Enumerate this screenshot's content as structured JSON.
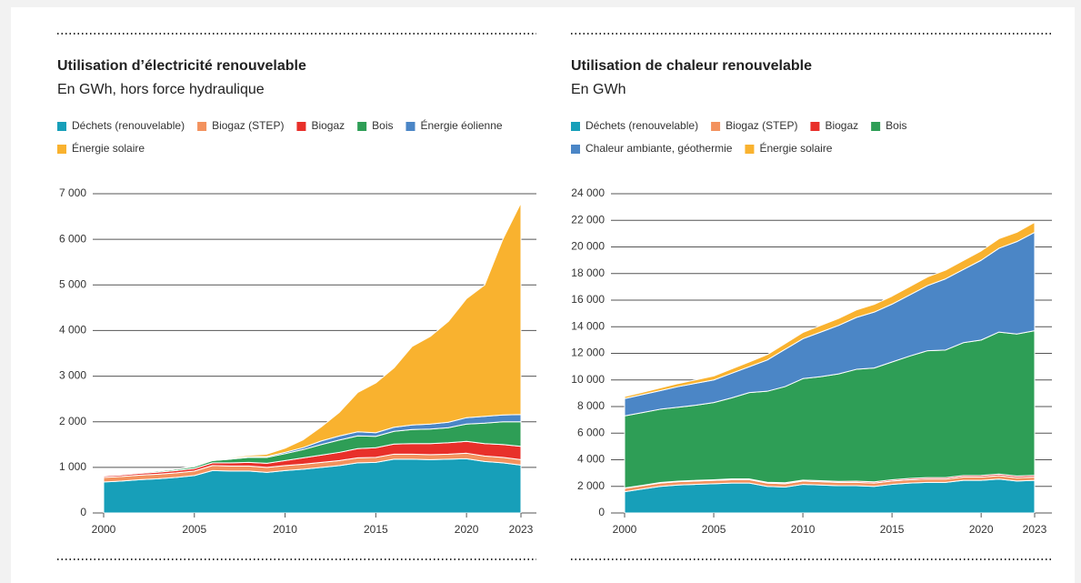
{
  "chart_data": [
    {
      "type": "area",
      "stacked": true,
      "title": "Utilisation d’électricité renouvelable",
      "subtitle": "En GWh, hors force hydraulique",
      "x": [
        2000,
        2001,
        2002,
        2003,
        2004,
        2005,
        2006,
        2007,
        2008,
        2009,
        2010,
        2011,
        2012,
        2013,
        2014,
        2015,
        2016,
        2017,
        2018,
        2019,
        2020,
        2021,
        2022,
        2023
      ],
      "xlim": [
        2000,
        2023
      ],
      "xticks": [
        2000,
        2005,
        2010,
        2015,
        2020,
        2023
      ],
      "ylim": [
        0,
        7000
      ],
      "yticks": [
        0,
        {
          "value": 1000,
          "label": "1 000"
        },
        {
          "value": 2000,
          "label": "2 000"
        },
        {
          "value": 3000,
          "label": "3 000"
        },
        {
          "value": 4000,
          "label": "4 000"
        },
        {
          "value": 5000,
          "label": "5 000"
        },
        {
          "value": 6000,
          "label": "6 000"
        },
        {
          "value": 7000,
          "label": "7 000"
        }
      ],
      "grid": true,
      "legend": "top",
      "series": [
        {
          "name": "Déchets (renouvelable)",
          "color": "#179fb9",
          "values": [
            680,
            700,
            730,
            750,
            780,
            820,
            930,
            920,
            920,
            890,
            930,
            960,
            1000,
            1040,
            1100,
            1110,
            1180,
            1180,
            1170,
            1180,
            1190,
            1130,
            1100,
            1050
          ]
        },
        {
          "name": "Biogaz (STEP)",
          "color": "#f3925e",
          "values": [
            100,
            100,
            100,
            100,
            100,
            100,
            110,
            110,
            110,
            110,
            110,
            110,
            110,
            110,
            110,
            110,
            110,
            110,
            110,
            110,
            120,
            120,
            120,
            120
          ]
        },
        {
          "name": "Biogaz",
          "color": "#e8302a",
          "values": [
            30,
            35,
            40,
            45,
            50,
            55,
            60,
            70,
            80,
            90,
            110,
            140,
            160,
            180,
            200,
            210,
            220,
            230,
            240,
            250,
            260,
            270,
            280,
            290
          ]
        },
        {
          "name": "Bois",
          "color": "#2e9e56",
          "values": [
            10,
            15,
            20,
            25,
            30,
            40,
            50,
            80,
            110,
            130,
            150,
            180,
            230,
            270,
            280,
            250,
            280,
            310,
            320,
            330,
            380,
            450,
            500,
            540
          ]
        },
        {
          "name": "Énergie éolienne",
          "color": "#4b86c6",
          "values": [
            0,
            0,
            0,
            1,
            2,
            5,
            8,
            12,
            15,
            20,
            30,
            45,
            80,
            90,
            90,
            80,
            90,
            100,
            110,
            120,
            140,
            150,
            150,
            160
          ]
        },
        {
          "name": "Énergie solaire",
          "color": "#f9b22f",
          "values": [
            0,
            1,
            1,
            2,
            3,
            5,
            10,
            20,
            30,
            50,
            90,
            170,
            310,
            520,
            860,
            1090,
            1300,
            1720,
            1920,
            2210,
            2610,
            2880,
            3850,
            4640
          ]
        }
      ]
    },
    {
      "type": "area",
      "stacked": true,
      "title": "Utilisation de chaleur renouvelable",
      "subtitle": "En GWh",
      "x": [
        2000,
        2001,
        2002,
        2003,
        2004,
        2005,
        2006,
        2007,
        2008,
        2009,
        2010,
        2011,
        2012,
        2013,
        2014,
        2015,
        2016,
        2017,
        2018,
        2019,
        2020,
        2021,
        2022,
        2023
      ],
      "xlim": [
        2000,
        2023
      ],
      "xticks": [
        2000,
        2005,
        2010,
        2015,
        2020,
        2023
      ],
      "ylim": [
        0,
        24000
      ],
      "yticks": [
        0,
        {
          "value": 2000,
          "label": "2 000"
        },
        {
          "value": 4000,
          "label": "4 000"
        },
        {
          "value": 6000,
          "label": "6 000"
        },
        {
          "value": 8000,
          "label": "8 000"
        },
        {
          "value": 10000,
          "label": "10 000"
        },
        {
          "value": 12000,
          "label": "12 000"
        },
        {
          "value": 14000,
          "label": "14 000"
        },
        {
          "value": 16000,
          "label": "16 000"
        },
        {
          "value": 18000,
          "label": "18 000"
        },
        {
          "value": 20000,
          "label": "20 000"
        },
        {
          "value": 22000,
          "label": "22 000"
        },
        {
          "value": 24000,
          "label": "24 000"
        }
      ],
      "grid": true,
      "legend": "top",
      "series": [
        {
          "name": "Déchets (renouvelable)",
          "color": "#179fb9",
          "values": [
            1600,
            1800,
            2000,
            2100,
            2150,
            2200,
            2250,
            2250,
            2000,
            1950,
            2150,
            2100,
            2050,
            2050,
            2000,
            2150,
            2250,
            2300,
            2300,
            2450,
            2450,
            2550,
            2400,
            2450
          ]
        },
        {
          "name": "Biogaz (STEP)",
          "color": "#f3925e",
          "values": [
            250,
            250,
            250,
            250,
            250,
            250,
            250,
            250,
            250,
            250,
            250,
            250,
            250,
            250,
            250,
            250,
            250,
            250,
            250,
            250,
            250,
            250,
            250,
            250
          ]
        },
        {
          "name": "Biogaz",
          "color": "#e8302a",
          "values": [
            30,
            30,
            40,
            40,
            50,
            50,
            60,
            60,
            60,
            70,
            70,
            80,
            80,
            90,
            90,
            100,
            100,
            110,
            110,
            110,
            120,
            120,
            130,
            130
          ]
        },
        {
          "name": "Bois",
          "color": "#2e9e56",
          "values": [
            5420,
            5470,
            5510,
            5560,
            5650,
            5800,
            6090,
            6490,
            6840,
            7230,
            7630,
            7820,
            8070,
            8410,
            8560,
            8850,
            9200,
            9540,
            9590,
            9990,
            10180,
            10680,
            10670,
            10870
          ]
        },
        {
          "name": "Chaleur ambiante, géothermie",
          "color": "#4b86c6",
          "values": [
            1300,
            1350,
            1400,
            1550,
            1650,
            1700,
            1850,
            1950,
            2350,
            2800,
            3000,
            3350,
            3650,
            3900,
            4200,
            4350,
            4600,
            4900,
            5350,
            5500,
            6000,
            6300,
            6950,
            7400
          ]
        },
        {
          "name": "Énergie solaire",
          "color": "#f9b22f",
          "values": [
            150,
            170,
            200,
            230,
            260,
            300,
            330,
            360,
            400,
            430,
            470,
            500,
            520,
            560,
            580,
            600,
            620,
            650,
            650,
            680,
            700,
            720,
            700,
            750
          ]
        }
      ]
    }
  ]
}
